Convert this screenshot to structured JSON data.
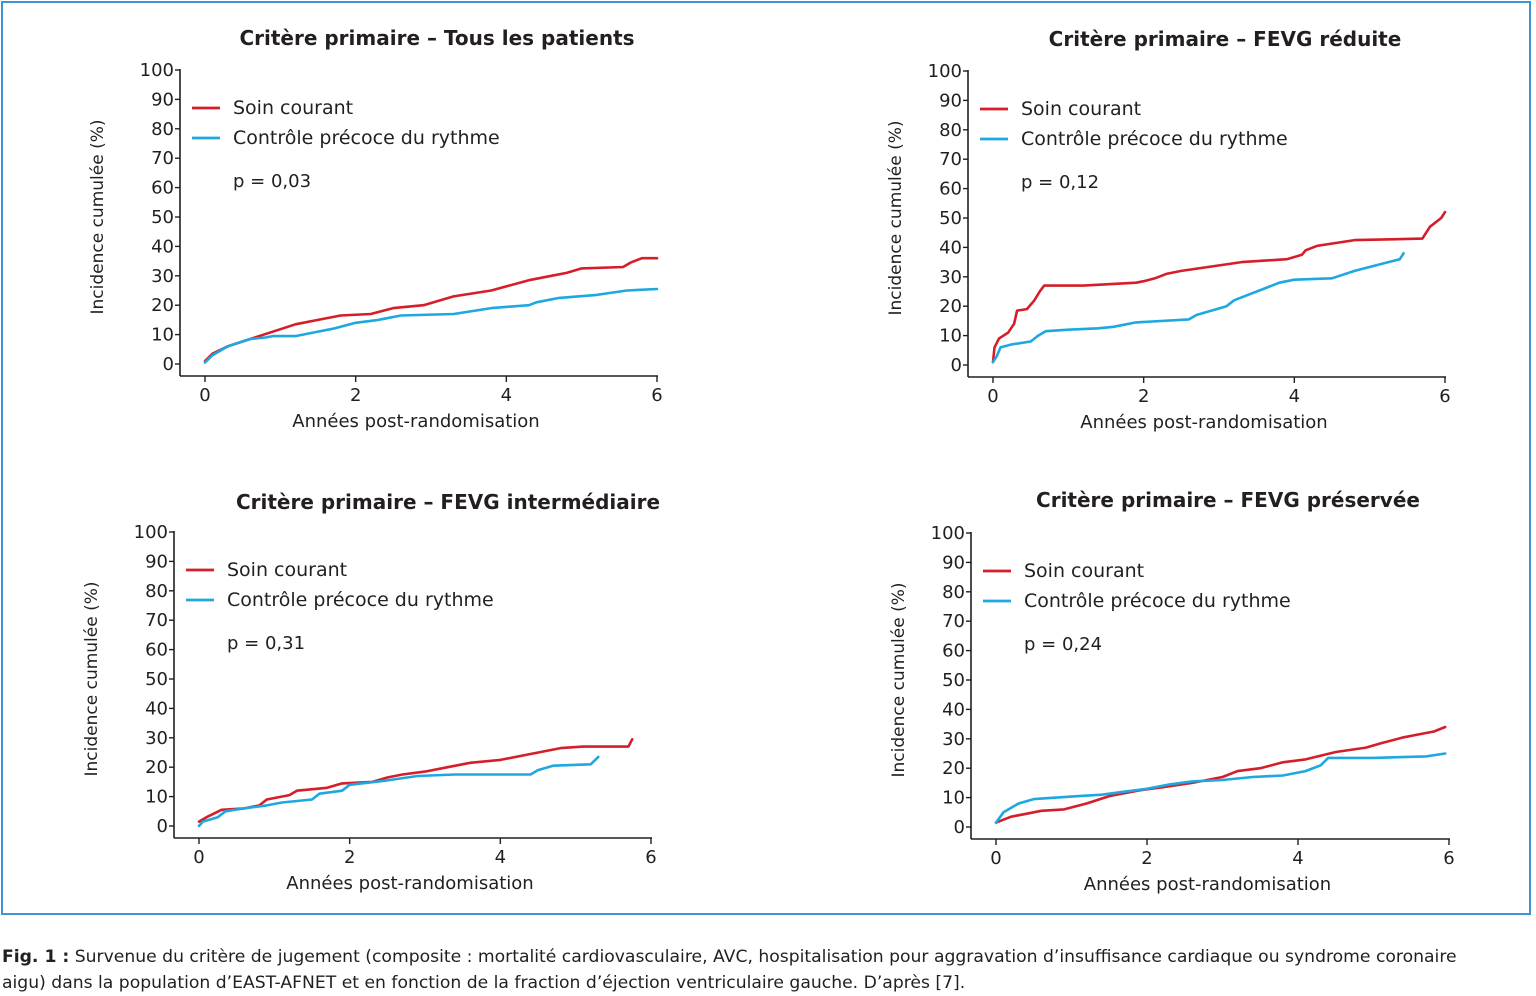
{
  "colors": {
    "red": "#d51e29",
    "blue": "#1ea8e0",
    "frame": "#3d96cf",
    "text": "#231f20"
  },
  "chart_data": [
    {
      "type": "line",
      "title": "Critère primaire – Tous les patients",
      "xlabel": "Années post-randomisation",
      "ylabel": "Incidence cumulée (%)",
      "xlim": [
        0,
        6
      ],
      "ylim": [
        0,
        100
      ],
      "x_ticks": [
        "0",
        "2",
        "4",
        "6"
      ],
      "y_ticks": [
        "0",
        "10",
        "20",
        "30",
        "40",
        "50",
        "60",
        "70",
        "80",
        "90",
        "100"
      ],
      "legend_position": "top-left",
      "annotation": "p = 0,03",
      "series": [
        {
          "name": "Soin courant",
          "color": "#d51e29",
          "points": [
            [
              0,
              1
            ],
            [
              0.1,
              3.5
            ],
            [
              0.3,
              6
            ],
            [
              0.6,
              8.5
            ],
            [
              0.9,
              11
            ],
            [
              1.2,
              13.5
            ],
            [
              1.5,
              15
            ],
            [
              1.8,
              16.5
            ],
            [
              2.2,
              17
            ],
            [
              2.5,
              19
            ],
            [
              2.9,
              20
            ],
            [
              3.3,
              23
            ],
            [
              3.8,
              25
            ],
            [
              4.3,
              28.5
            ],
            [
              4.6,
              30
            ],
            [
              4.8,
              31
            ],
            [
              5.0,
              32.5
            ],
            [
              5.55,
              33
            ],
            [
              5.65,
              34.5
            ],
            [
              5.8,
              36
            ],
            [
              6,
              36
            ]
          ]
        },
        {
          "name": "Contrôle précoce du rythme",
          "color": "#1ea8e0",
          "points": [
            [
              0,
              0.5
            ],
            [
              0.1,
              3
            ],
            [
              0.3,
              6
            ],
            [
              0.6,
              8.5
            ],
            [
              0.8,
              9
            ],
            [
              0.9,
              9.5
            ],
            [
              1.2,
              9.5
            ],
            [
              1.4,
              10.5
            ],
            [
              1.7,
              12
            ],
            [
              2.0,
              14
            ],
            [
              2.3,
              15
            ],
            [
              2.6,
              16.5
            ],
            [
              3.3,
              17
            ],
            [
              3.8,
              19
            ],
            [
              4.3,
              20
            ],
            [
              4.4,
              21
            ],
            [
              4.7,
              22.5
            ],
            [
              5.2,
              23.5
            ],
            [
              5.6,
              25
            ],
            [
              6,
              25.5
            ]
          ]
        }
      ]
    },
    {
      "type": "line",
      "title": "Critère primaire – FEVG réduite",
      "xlabel": "Années post-randomisation",
      "ylabel": "Incidence cumulée (%)",
      "xlim": [
        0,
        6
      ],
      "ylim": [
        0,
        100
      ],
      "x_ticks": [
        "0",
        "2",
        "4",
        "6"
      ],
      "y_ticks": [
        "0",
        "10",
        "20",
        "30",
        "40",
        "50",
        "60",
        "70",
        "80",
        "90",
        "100"
      ],
      "legend_position": "top-left",
      "annotation": "p = 0,12",
      "series": [
        {
          "name": "Soin courant",
          "color": "#d51e29",
          "points": [
            [
              0,
              1
            ],
            [
              0.02,
              6
            ],
            [
              0.08,
              9
            ],
            [
              0.2,
              11
            ],
            [
              0.28,
              14
            ],
            [
              0.32,
              18.5
            ],
            [
              0.45,
              19
            ],
            [
              0.55,
              22
            ],
            [
              0.62,
              25
            ],
            [
              0.68,
              27
            ],
            [
              1.2,
              27
            ],
            [
              1.9,
              28
            ],
            [
              2.0,
              28.5
            ],
            [
              2.15,
              29.5
            ],
            [
              2.3,
              31
            ],
            [
              2.5,
              32
            ],
            [
              2.9,
              33.5
            ],
            [
              3.3,
              35
            ],
            [
              3.9,
              36
            ],
            [
              4.1,
              37.5
            ],
            [
              4.15,
              39
            ],
            [
              4.3,
              40.5
            ],
            [
              4.8,
              42.5
            ],
            [
              5.7,
              43
            ],
            [
              5.8,
              47
            ],
            [
              5.95,
              50
            ],
            [
              6,
              52
            ]
          ]
        },
        {
          "name": "Contrôle précoce du rythme",
          "color": "#1ea8e0",
          "points": [
            [
              0,
              1
            ],
            [
              0.05,
              3
            ],
            [
              0.1,
              6
            ],
            [
              0.25,
              7
            ],
            [
              0.5,
              8
            ],
            [
              0.6,
              10
            ],
            [
              0.7,
              11.5
            ],
            [
              1.0,
              12
            ],
            [
              1.4,
              12.5
            ],
            [
              1.6,
              13
            ],
            [
              1.9,
              14.5
            ],
            [
              2.6,
              15.5
            ],
            [
              2.7,
              17
            ],
            [
              2.9,
              18.5
            ],
            [
              3.1,
              20
            ],
            [
              3.2,
              22
            ],
            [
              3.4,
              24
            ],
            [
              3.6,
              26
            ],
            [
              3.8,
              28
            ],
            [
              4.0,
              29
            ],
            [
              4.5,
              29.5
            ],
            [
              4.8,
              32
            ],
            [
              5.1,
              34
            ],
            [
              5.4,
              36
            ],
            [
              5.45,
              38
            ]
          ]
        }
      ]
    },
    {
      "type": "line",
      "title": "Critère primaire – FEVG intermédiaire",
      "xlabel": "Années post-randomisation",
      "ylabel": "Incidence cumulée (%)",
      "xlim": [
        0,
        6
      ],
      "ylim": [
        0,
        100
      ],
      "x_ticks": [
        "0",
        "2",
        "4",
        "6"
      ],
      "y_ticks": [
        "0",
        "10",
        "20",
        "30",
        "40",
        "50",
        "60",
        "70",
        "80",
        "90",
        "100"
      ],
      "legend_position": "top-left",
      "annotation": "p = 0,31",
      "series": [
        {
          "name": "Soin courant",
          "color": "#d51e29",
          "points": [
            [
              0,
              1.5
            ],
            [
              0.1,
              3
            ],
            [
              0.3,
              5.5
            ],
            [
              0.6,
              6
            ],
            [
              0.8,
              7
            ],
            [
              0.9,
              9
            ],
            [
              1.2,
              10.5
            ],
            [
              1.3,
              12
            ],
            [
              1.7,
              13
            ],
            [
              1.9,
              14.5
            ],
            [
              2.3,
              15
            ],
            [
              2.5,
              16.5
            ],
            [
              2.7,
              17.5
            ],
            [
              3.0,
              18.5
            ],
            [
              3.3,
              20
            ],
            [
              3.6,
              21.5
            ],
            [
              4.0,
              22.5
            ],
            [
              4.4,
              24.5
            ],
            [
              4.8,
              26.5
            ],
            [
              5.1,
              27
            ],
            [
              5.7,
              27
            ],
            [
              5.75,
              29.5
            ]
          ]
        },
        {
          "name": "Contrôle précoce du rythme",
          "color": "#1ea8e0",
          "points": [
            [
              0,
              0
            ],
            [
              0.05,
              1.5
            ],
            [
              0.25,
              3
            ],
            [
              0.35,
              5
            ],
            [
              0.6,
              6
            ],
            [
              0.9,
              7
            ],
            [
              1.1,
              8
            ],
            [
              1.5,
              9
            ],
            [
              1.6,
              11
            ],
            [
              1.9,
              12
            ],
            [
              2.0,
              14
            ],
            [
              2.5,
              15.5
            ],
            [
              2.9,
              17
            ],
            [
              3.4,
              17.5
            ],
            [
              4.4,
              17.5
            ],
            [
              4.5,
              19
            ],
            [
              4.7,
              20.5
            ],
            [
              5.2,
              21
            ],
            [
              5.3,
              23.5
            ]
          ]
        }
      ]
    },
    {
      "type": "line",
      "title": "Critère primaire – FEVG préservée",
      "xlabel": "Années post-randomisation",
      "ylabel": "Incidence cumulée (%)",
      "xlim": [
        0,
        6
      ],
      "ylim": [
        0,
        100
      ],
      "x_ticks": [
        "0",
        "2",
        "4",
        "6"
      ],
      "y_ticks": [
        "0",
        "10",
        "20",
        "30",
        "40",
        "50",
        "60",
        "70",
        "80",
        "90",
        "100"
      ],
      "legend_position": "top-left",
      "annotation": "p = 0,24",
      "series": [
        {
          "name": "Soin courant",
          "color": "#d51e29",
          "points": [
            [
              0,
              1.5
            ],
            [
              0.2,
              3.5
            ],
            [
              0.4,
              4.5
            ],
            [
              0.6,
              5.5
            ],
            [
              0.9,
              6
            ],
            [
              1.2,
              8
            ],
            [
              1.5,
              10.5
            ],
            [
              1.9,
              12.5
            ],
            [
              2.2,
              13.5
            ],
            [
              2.6,
              15
            ],
            [
              3.0,
              17
            ],
            [
              3.2,
              19
            ],
            [
              3.5,
              20
            ],
            [
              3.8,
              22
            ],
            [
              4.1,
              23
            ],
            [
              4.5,
              25.5
            ],
            [
              4.9,
              27
            ],
            [
              5.1,
              28.5
            ],
            [
              5.4,
              30.5
            ],
            [
              5.6,
              31.5
            ],
            [
              5.8,
              32.5
            ],
            [
              5.95,
              34
            ]
          ]
        },
        {
          "name": "Contrôle précoce du rythme",
          "color": "#1ea8e0",
          "points": [
            [
              0,
              1.5
            ],
            [
              0.1,
              5
            ],
            [
              0.3,
              8
            ],
            [
              0.5,
              9.5
            ],
            [
              0.8,
              10
            ],
            [
              1.1,
              10.5
            ],
            [
              1.4,
              11
            ],
            [
              1.7,
              12
            ],
            [
              2.0,
              13
            ],
            [
              2.3,
              14.5
            ],
            [
              2.6,
              15.5
            ],
            [
              3.0,
              16
            ],
            [
              3.4,
              17
            ],
            [
              3.8,
              17.5
            ],
            [
              4.1,
              19
            ],
            [
              4.3,
              21
            ],
            [
              4.4,
              23.5
            ],
            [
              5.0,
              23.5
            ],
            [
              5.7,
              24
            ],
            [
              5.95,
              25
            ]
          ]
        }
      ]
    }
  ],
  "caption": {
    "label": "Fig. 1 :",
    "line1": " Survenue du critère de jugement (composite : mortalité cardiovasculaire, AVC, hospitalisation pour aggravation d’insuffisance cardiaque ou syndrome coronaire",
    "line2": "aigu) dans la population d’EAST-AFNET et en fonction de la fraction d’éjection ventriculaire gauche. D’après [7]."
  }
}
